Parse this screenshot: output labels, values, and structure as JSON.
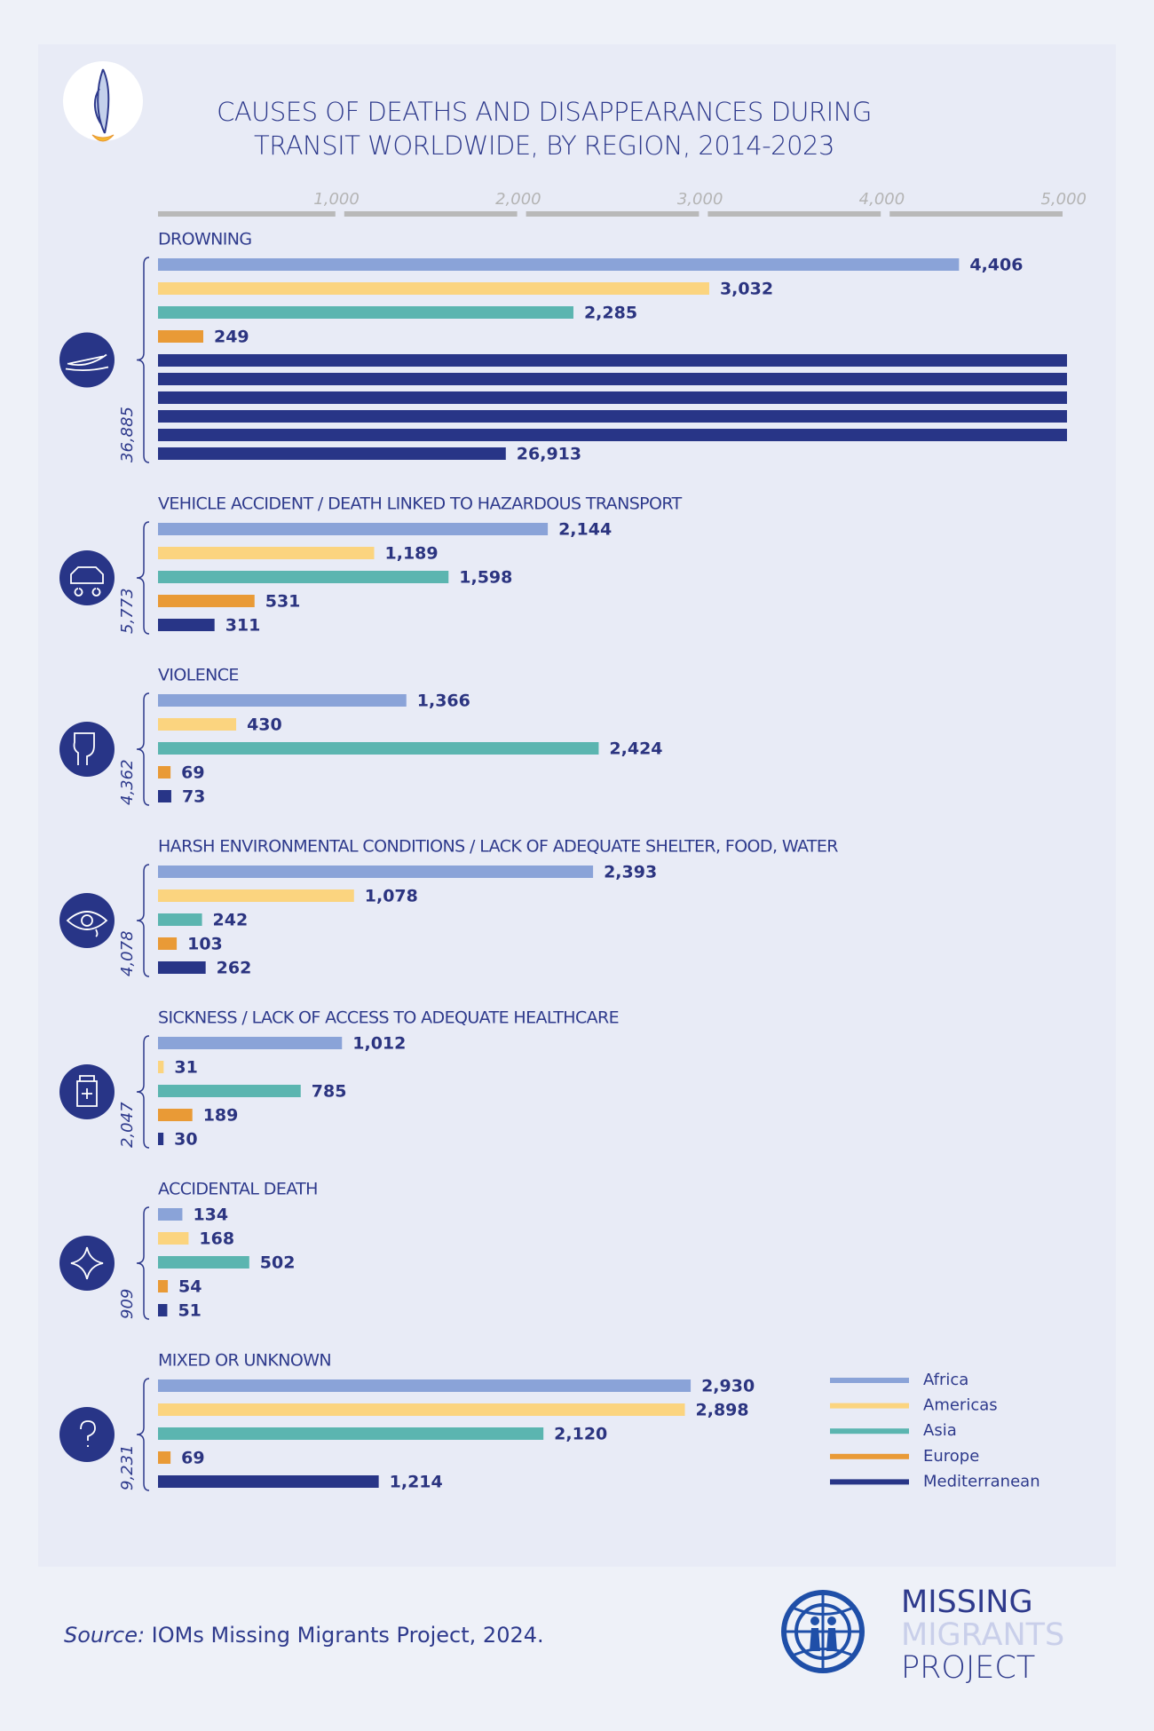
{
  "chart_data": {
    "type": "bar",
    "title": [
      "CAUSES OF DEATHS AND DISAPPEARANCES DURING",
      "TRANSIT WORLDWIDE, BY REGION, 2014-2023"
    ],
    "categories": [
      "DROWNING",
      "VEHICLE ACCIDENT / DEATH LINKED TO HAZARDOUS TRANSPORT",
      "VIOLENCE",
      "HARSH ENVIRONMENTAL CONDITIONS / LACK OF ADEQUATE SHELTER, FOOD, WATER",
      "SICKNESS / LACK OF ACCESS TO ADEQUATE HEALTHCARE",
      "ACCIDENTAL DEATH",
      "MIXED OR UNKNOWN"
    ],
    "series": [
      {
        "name": "Africa",
        "color": "#8aa3d8",
        "values": [
          4406,
          2144,
          1366,
          2393,
          1012,
          134,
          2930
        ],
        "value_labels": [
          "4,406",
          "2,144",
          "1,366",
          "2,393",
          "1,012",
          "134",
          "2,930"
        ]
      },
      {
        "name": "Americas",
        "color": "#fbd47f",
        "values": [
          3032,
          1189,
          430,
          1078,
          31,
          168,
          2898
        ],
        "value_labels": [
          "3,032",
          "1,189",
          "430",
          "1,078",
          "31",
          "168",
          "2,898"
        ]
      },
      {
        "name": "Asia",
        "color": "#5bb5b0",
        "values": [
          2285,
          1598,
          2424,
          242,
          785,
          502,
          2120
        ],
        "value_labels": [
          "2,285",
          "1,598",
          "2,424",
          "242",
          "785",
          "502",
          "2,120"
        ]
      },
      {
        "name": "Europe",
        "color": "#e99a36",
        "values": [
          249,
          531,
          69,
          103,
          189,
          54,
          69
        ],
        "value_labels": [
          "249",
          "531",
          "69",
          "103",
          "189",
          "54",
          "69"
        ]
      },
      {
        "name": "Mediterranean",
        "color": "#283587",
        "values": [
          26913,
          311,
          73,
          262,
          30,
          51,
          1214
        ],
        "value_labels": [
          "26,913",
          "311",
          "73",
          "262",
          "30",
          "51",
          "1,214"
        ]
      }
    ],
    "totals": [
      36885,
      5773,
      4362,
      4078,
      2047,
      909,
      9231
    ],
    "total_labels": [
      "36,885",
      "5,773",
      "4,362",
      "4,078",
      "2,047",
      "909",
      "9,231"
    ],
    "xlim": [
      0,
      5000
    ],
    "xticks": [
      {
        "value": 1000,
        "label": "1,000"
      },
      {
        "value": 2000,
        "label": "2,000"
      },
      {
        "value": 3000,
        "label": "3,000"
      },
      {
        "value": 4000,
        "label": "4,000"
      },
      {
        "value": 5000,
        "label": "5,000"
      }
    ],
    "legend": "bottom-right",
    "source_label": "Source:",
    "source": " IOMs Missing Migrants Project, 2024.",
    "logo": [
      "MISSING",
      "MIGRANTS",
      "PROJECT"
    ]
  }
}
